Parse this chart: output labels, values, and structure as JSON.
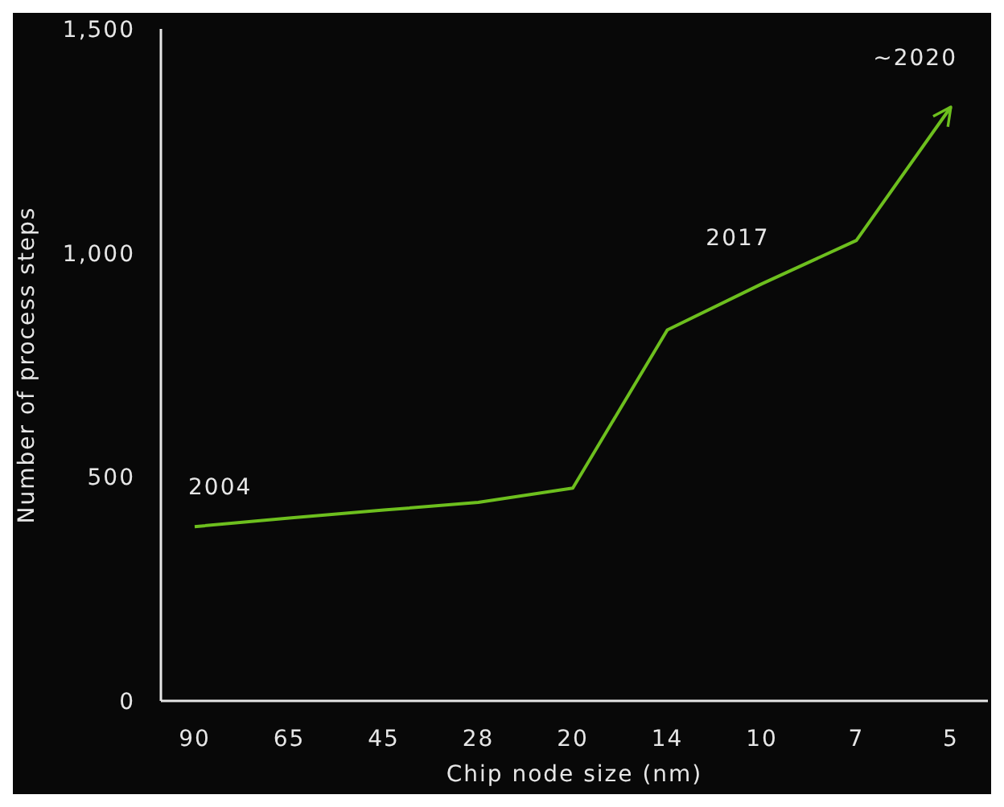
{
  "chart_data": {
    "type": "line",
    "xlabel": "Chip node size (nm)",
    "ylabel": "Number of process steps",
    "categories": [
      "90",
      "65",
      "45",
      "28",
      "20",
      "14",
      "10",
      "7",
      "5"
    ],
    "series": [
      {
        "color": "#6dbf1e",
        "values": [
          389,
          408,
          426,
          443,
          475,
          828,
          931,
          1028,
          1326
        ]
      }
    ],
    "ylim": [
      0,
      1500
    ],
    "yticks": [
      0,
      500,
      {
        "value": 1000,
        "label": "1,000"
      },
      {
        "value": 1500,
        "label": "1,500"
      }
    ],
    "grid": false,
    "legend": false,
    "line_style": "solid",
    "annotations": [
      {
        "text": "2004",
        "x": "90",
        "y": 389
      },
      {
        "text": "2017",
        "x": "10",
        "y": 931
      },
      {
        "text": "~2020",
        "x": "5",
        "y": 1326
      }
    ]
  }
}
